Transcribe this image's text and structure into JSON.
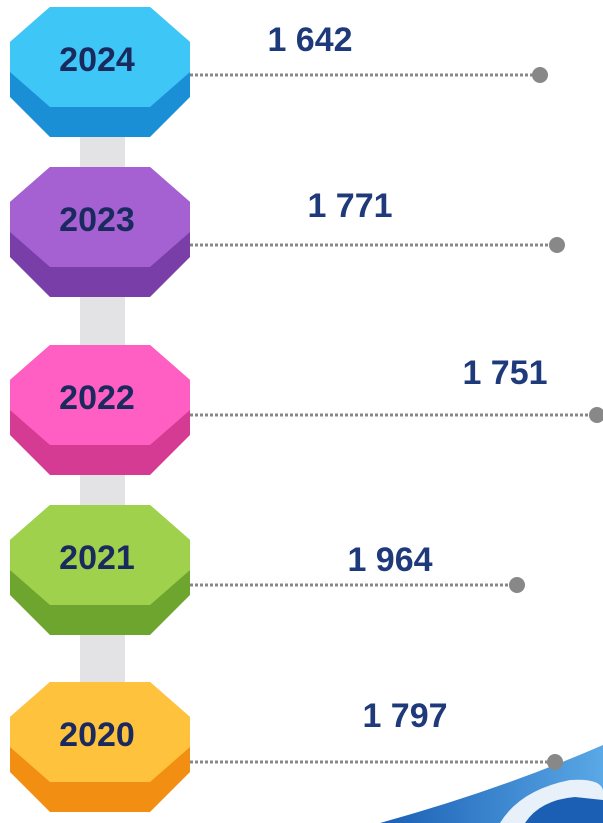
{
  "items": [
    {
      "year": "2024",
      "value": "1 642"
    },
    {
      "year": "2023",
      "value": "1 771"
    },
    {
      "year": "2022",
      "value": "1 751"
    },
    {
      "year": "2021",
      "value": "1 964"
    },
    {
      "year": "2020",
      "value": "1 797"
    }
  ]
}
